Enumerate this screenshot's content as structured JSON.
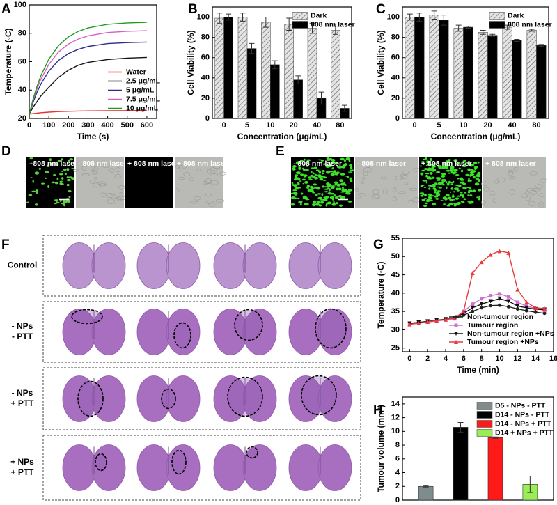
{
  "chart_data": [
    {
      "type": "line",
      "panel": "A",
      "x_label": "Time (s)",
      "y_label": "Temperature (◦C)",
      "x": [
        0,
        20,
        40,
        60,
        100,
        150,
        200,
        250,
        300,
        400,
        500,
        600
      ],
      "xlim": [
        0,
        650
      ],
      "xticks": [
        0,
        100,
        200,
        300,
        400,
        500,
        600
      ],
      "ylim": [
        20,
        100
      ],
      "yticks": [
        20,
        40,
        60,
        80,
        100
      ],
      "legend": "lower right",
      "series": [
        {
          "name": "Water",
          "color": "#e8312f",
          "values": [
            23,
            23.4,
            23.7,
            24,
            24.4,
            24.8,
            25,
            25.2,
            25.3,
            25.4,
            25.5,
            25.6
          ]
        },
        {
          "name": "2.5 μg/mL",
          "color": "#111111",
          "values": [
            23,
            28,
            32,
            36,
            42,
            49,
            54,
            57.5,
            59.5,
            61.5,
            62.5,
            63
          ]
        },
        {
          "name": "5 μg/mL",
          "color": "#2b2b8a",
          "values": [
            23,
            31.5,
            38.6,
            44.4,
            53.4,
            61,
            65.7,
            68.7,
            70.7,
            72.7,
            73.4,
            73.8
          ]
        },
        {
          "name": "7.5 μg/mL",
          "color": "#d65fc0",
          "values": [
            23,
            32.8,
            41,
            47.8,
            58.2,
            66.9,
            72.4,
            75.9,
            78.2,
            80.5,
            81.4,
            81.8
          ]
        },
        {
          "name": "10 μg/mL",
          "color": "#1f9a1f",
          "values": [
            23,
            33.8,
            42.8,
            50.3,
            61.8,
            71.4,
            77.5,
            81.3,
            83.8,
            86.3,
            87.3,
            87.7
          ]
        }
      ]
    },
    {
      "type": "bar",
      "panel": "B",
      "x_label": "Concentration (μg/mL)",
      "y_label": "Cell Viability (%)",
      "categories": [
        "0",
        "5",
        "10",
        "20",
        "40",
        "80"
      ],
      "ylim": [
        0,
        110
      ],
      "yticks": [
        0,
        20,
        40,
        60,
        80,
        100
      ],
      "legend": "upper right",
      "series": [
        {
          "name": "Dark",
          "color": "#777777",
          "hatch": true,
          "values": [
            99,
            100,
            95,
            93,
            89,
            87
          ],
          "errors": [
            5,
            4,
            5,
            6,
            5,
            4
          ]
        },
        {
          "name": "808 nm laser",
          "color": "#000000",
          "values": [
            100,
            69,
            53,
            38,
            20,
            10
          ],
          "errors": [
            3,
            5,
            4,
            4,
            6,
            3
          ]
        }
      ]
    },
    {
      "type": "bar",
      "panel": "C",
      "x_label": "Concentration (μg/mL)",
      "y_label": "Cell Viability (%)",
      "categories": [
        "0",
        "5",
        "10",
        "20",
        "40",
        "80"
      ],
      "ylim": [
        0,
        110
      ],
      "yticks": [
        0,
        20,
        40,
        60,
        80,
        100
      ],
      "legend": "upper right",
      "series": [
        {
          "name": "Dark",
          "color": "#777777",
          "hatch": true,
          "values": [
            100,
            102,
            89,
            85,
            90,
            87
          ],
          "errors": [
            3,
            4,
            3,
            2,
            2,
            1
          ]
        },
        {
          "name": "808 nm laser",
          "color": "#000000",
          "values": [
            100,
            97,
            90,
            82,
            77,
            72
          ],
          "errors": [
            4,
            5,
            1,
            1,
            1,
            1
          ]
        }
      ]
    },
    {
      "type": "line",
      "panel": "G",
      "x_label": "Time (min)",
      "y_label": "Temperature (◦C)",
      "x": [
        0,
        1,
        2,
        3,
        4,
        5,
        6,
        7,
        8,
        9,
        10,
        11,
        12,
        13,
        14,
        15
      ],
      "xlim": [
        -0.8,
        16
      ],
      "xticks": [
        0,
        2,
        4,
        6,
        8,
        10,
        12,
        14,
        16
      ],
      "ylim": [
        24,
        55
      ],
      "yticks": [
        25,
        30,
        35,
        40,
        45,
        50,
        55
      ],
      "legend": "lower right",
      "series": [
        {
          "name": "Non-tumour region",
          "color": "#222222",
          "marker": "circle",
          "values": [
            31.8,
            32,
            32.3,
            32.5,
            32.8,
            33,
            34,
            35,
            36,
            36.6,
            36.7,
            36.3,
            35.7,
            35.2,
            34.8,
            34.5
          ]
        },
        {
          "name": "Tumour region",
          "color": "#d070d0",
          "marker": "square",
          "values": [
            31.5,
            31.8,
            32.1,
            32.4,
            32.7,
            33,
            35,
            37,
            38.5,
            39.3,
            39.8,
            39,
            37.5,
            36.5,
            35.8,
            35.3
          ]
        },
        {
          "name": "Non-tumour region +NPs",
          "color": "#111111",
          "marker": "triangle-down",
          "values": [
            31.7,
            32,
            32.3,
            32.6,
            32.9,
            33.2,
            34.5,
            36,
            37,
            37.8,
            38.5,
            37.8,
            36.5,
            36,
            35.6,
            35.5
          ]
        },
        {
          "name": "Tumour region +NPs",
          "color": "#e83a3a",
          "marker": "triangle-up",
          "values": [
            31.5,
            31.8,
            32.2,
            32.5,
            32.8,
            33.2,
            35,
            45.5,
            48.5,
            50.5,
            51.5,
            51,
            41,
            37.5,
            36,
            35.8
          ]
        }
      ]
    },
    {
      "type": "bar",
      "panel": "H",
      "y_label": "Tumour volume (mm³)",
      "categories": [
        null
      ],
      "ylim": [
        0,
        15
      ],
      "yticks": [
        0,
        2,
        4,
        6,
        8,
        10,
        12,
        14
      ],
      "legend": "upper right",
      "series": [
        {
          "name": "D5 - NPs - PTT",
          "color": "#7f8c8d",
          "values": [
            2.0
          ],
          "errors": [
            0.1
          ]
        },
        {
          "name": "D14 - NPs - PTT",
          "color": "#000000",
          "values": [
            10.6
          ],
          "errors": [
            0.7
          ]
        },
        {
          "name": "D14 - NPs + PTT",
          "color": "#ff1a1a",
          "values": [
            9.1
          ],
          "errors": [
            0.1
          ]
        },
        {
          "name": "D14 + NPs + PTT",
          "color": "#99ee55",
          "values": [
            2.3
          ],
          "errors": [
            1.2
          ]
        }
      ]
    }
  ],
  "panel_d": {
    "panel": "D",
    "labels": [
      "- 808 nm laser",
      "- 808 nm laser",
      "+ 808 nm laser",
      "+ 808 nm laser"
    ]
  },
  "panel_e": {
    "panel": "E",
    "labels": [
      "- 808 nm laser",
      "- 808 nm laser",
      "+ 808 nm laser",
      "+ 808 nm laser"
    ]
  },
  "panel_f": {
    "panel": "F",
    "row_labels": [
      [
        "Control"
      ],
      [
        "- NPs",
        "- PTT"
      ],
      [
        "- NPs",
        "+ PTT"
      ],
      [
        "+ NPs",
        "+ PTT"
      ]
    ]
  }
}
